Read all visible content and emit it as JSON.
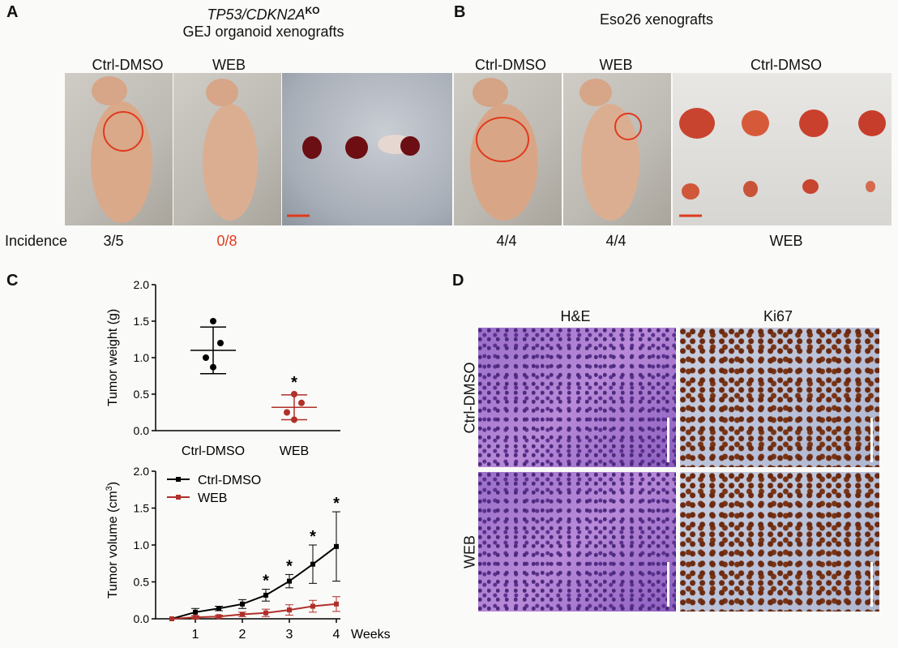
{
  "panel_a": {
    "letter": "A",
    "title_italic": "TP53/CDKN2A",
    "title_sup": "KO",
    "title_line2": "GEJ organoid xenografts",
    "col1": "Ctrl-DMSO",
    "col2": "WEB",
    "incidence_label": "Incidence",
    "incidence_ctrl": "3/5",
    "incidence_web": "0/8"
  },
  "panel_b": {
    "letter": "B",
    "title": "Eso26 xenografts",
    "col1": "Ctrl-DMSO",
    "col2": "WEB",
    "col3": "Ctrl-DMSO",
    "val1": "4/4",
    "val2": "4/4",
    "val3": "WEB"
  },
  "panel_c": {
    "letter": "C"
  },
  "panel_d": {
    "letter": "D",
    "col1": "H&E",
    "col2": "Ki67",
    "row1": "Ctrl-DMSO",
    "row2": "WEB"
  },
  "colors": {
    "ctrl": "#000000",
    "web": "#b0302a",
    "highlight": "#e03a1e"
  },
  "chart_data": [
    {
      "type": "scatter",
      "ylabel": "Tumor weight (g)",
      "categories": [
        "Ctrl-DMSO",
        "WEB"
      ],
      "yticks": [
        "0.0",
        "0.5",
        "1.0",
        "1.5",
        "2.0"
      ],
      "ylim": [
        0,
        2.0
      ],
      "series": [
        {
          "name": "Ctrl-DMSO",
          "points": [
            1.5,
            1.2,
            1.0,
            0.87
          ],
          "mean": 1.1,
          "sd_low": 0.78,
          "sd_high": 1.42
        },
        {
          "name": "WEB",
          "points": [
            0.5,
            0.38,
            0.25,
            0.15
          ],
          "mean": 0.32,
          "sd_low": 0.15,
          "sd_high": 0.49
        }
      ],
      "annotations": [
        {
          "category": "WEB",
          "y": 0.68,
          "text": "*"
        }
      ]
    },
    {
      "type": "line",
      "ylabel": "Tumor volume (cm",
      "ylabel_sup": "3",
      "ylabel_end": ")",
      "xlabel": "Weeks",
      "x": [
        0,
        0.5,
        1,
        1.5,
        2,
        2.5,
        3,
        3.5,
        4
      ],
      "xticks": [
        "1",
        "2",
        "3",
        "4"
      ],
      "yticks": [
        "0.0",
        "0.5",
        "1.0",
        "1.5",
        "2.0"
      ],
      "ylim": [
        0,
        2.0
      ],
      "series": [
        {
          "name": "Ctrl-DMSO",
          "values": [
            0.0,
            0.09,
            0.14,
            0.2,
            0.32,
            0.51,
            0.74,
            0.98
          ],
          "x": [
            0.5,
            1,
            1.5,
            2,
            2.5,
            3,
            3.5,
            4
          ],
          "err": [
            0.0,
            0.05,
            0.03,
            0.06,
            0.08,
            0.09,
            0.26,
            0.47
          ]
        },
        {
          "name": "WEB",
          "values": [
            0.0,
            0.02,
            0.03,
            0.06,
            0.08,
            0.12,
            0.17,
            0.2
          ],
          "x": [
            0.5,
            1,
            1.5,
            2,
            2.5,
            3,
            3.5,
            4
          ],
          "err": [
            0.0,
            0.02,
            0.02,
            0.03,
            0.05,
            0.07,
            0.08,
            0.1
          ]
        }
      ],
      "stars": [
        2.5,
        3,
        3.5,
        4
      ],
      "star_text": "*"
    }
  ]
}
